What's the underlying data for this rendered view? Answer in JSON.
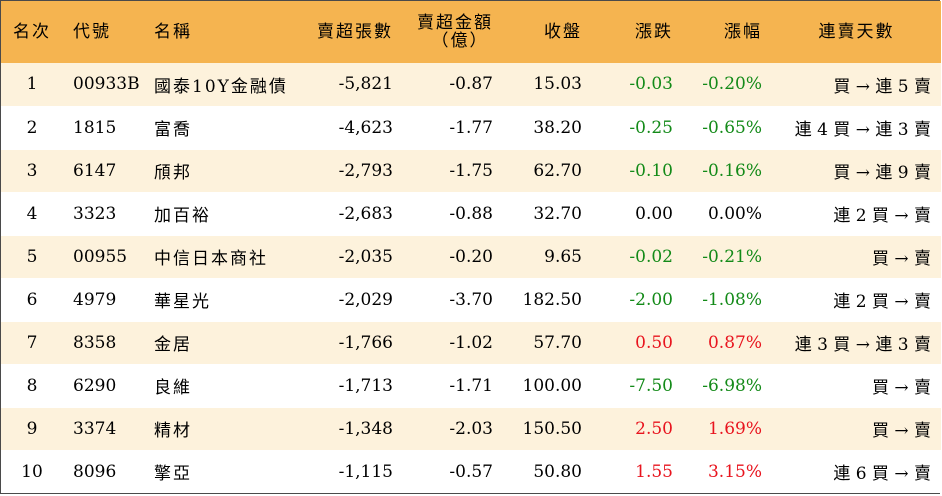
{
  "headers": {
    "rank": "名次",
    "code": "代號",
    "name": "名稱",
    "net_sell_lots": "賣超張數",
    "net_sell_amount_line1": "賣超金額",
    "net_sell_amount_line2": "（億）",
    "close": "收盤",
    "change": "漲跌",
    "change_pct": "漲幅",
    "streak": "連賣天數"
  },
  "colors": {
    "header_bg": "#f5b450",
    "odd_row_bg": "#fdf2dc",
    "up": "#e8141e",
    "down": "#138a18"
  },
  "rows": [
    {
      "rank": "1",
      "code": "00933B",
      "name": "國泰10Y金融債",
      "lots": "-5,821",
      "amount": "-0.87",
      "close": "15.03",
      "change": "-0.03",
      "pct": "-0.20%",
      "dir": "down",
      "streak": "買 → 連 5 賣"
    },
    {
      "rank": "2",
      "code": "1815",
      "name": "富喬",
      "lots": "-4,623",
      "amount": "-1.77",
      "close": "38.20",
      "change": "-0.25",
      "pct": "-0.65%",
      "dir": "down",
      "streak": "連 4 買 → 連 3 賣"
    },
    {
      "rank": "3",
      "code": "6147",
      "name": "頎邦",
      "lots": "-2,793",
      "amount": "-1.75",
      "close": "62.70",
      "change": "-0.10",
      "pct": "-0.16%",
      "dir": "down",
      "streak": "買 → 連 9 賣"
    },
    {
      "rank": "4",
      "code": "3323",
      "name": "加百裕",
      "lots": "-2,683",
      "amount": "-0.88",
      "close": "32.70",
      "change": "0.00",
      "pct": "0.00%",
      "dir": "flat",
      "streak": "連 2 買 → 賣"
    },
    {
      "rank": "5",
      "code": "00955",
      "name": "中信日本商社",
      "lots": "-2,035",
      "amount": "-0.20",
      "close": "9.65",
      "change": "-0.02",
      "pct": "-0.21%",
      "dir": "down",
      "streak": "買 → 賣"
    },
    {
      "rank": "6",
      "code": "4979",
      "name": "華星光",
      "lots": "-2,029",
      "amount": "-3.70",
      "close": "182.50",
      "change": "-2.00",
      "pct": "-1.08%",
      "dir": "down",
      "streak": "連 2 買 → 賣"
    },
    {
      "rank": "7",
      "code": "8358",
      "name": "金居",
      "lots": "-1,766",
      "amount": "-1.02",
      "close": "57.70",
      "change": "0.50",
      "pct": "0.87%",
      "dir": "up",
      "streak": "連 3 買 → 連 3 賣"
    },
    {
      "rank": "8",
      "code": "6290",
      "name": "良維",
      "lots": "-1,713",
      "amount": "-1.71",
      "close": "100.00",
      "change": "-7.50",
      "pct": "-6.98%",
      "dir": "down",
      "streak": "買 → 賣"
    },
    {
      "rank": "9",
      "code": "3374",
      "name": "精材",
      "lots": "-1,348",
      "amount": "-2.03",
      "close": "150.50",
      "change": "2.50",
      "pct": "1.69%",
      "dir": "up",
      "streak": "買 → 賣"
    },
    {
      "rank": "10",
      "code": "8096",
      "name": "擎亞",
      "lots": "-1,115",
      "amount": "-0.57",
      "close": "50.80",
      "change": "1.55",
      "pct": "3.15%",
      "dir": "up",
      "streak": "連 6 買 → 賣"
    }
  ]
}
